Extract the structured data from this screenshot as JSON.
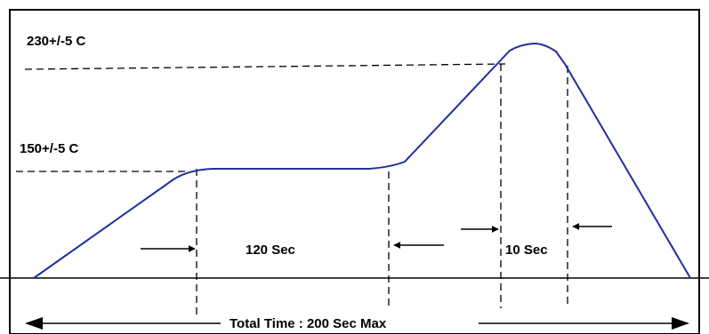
{
  "labels": {
    "peak_temp": "230+/-5 C",
    "soak_temp": "150+/-5 C",
    "soak_time": "120 Sec",
    "peak_time": "10 Sec",
    "total_time": "Total Time : 200 Sec Max"
  },
  "colors": {
    "profile_curve": "#1f2f9e",
    "frame": "#000000",
    "background": "#ffffff"
  }
}
